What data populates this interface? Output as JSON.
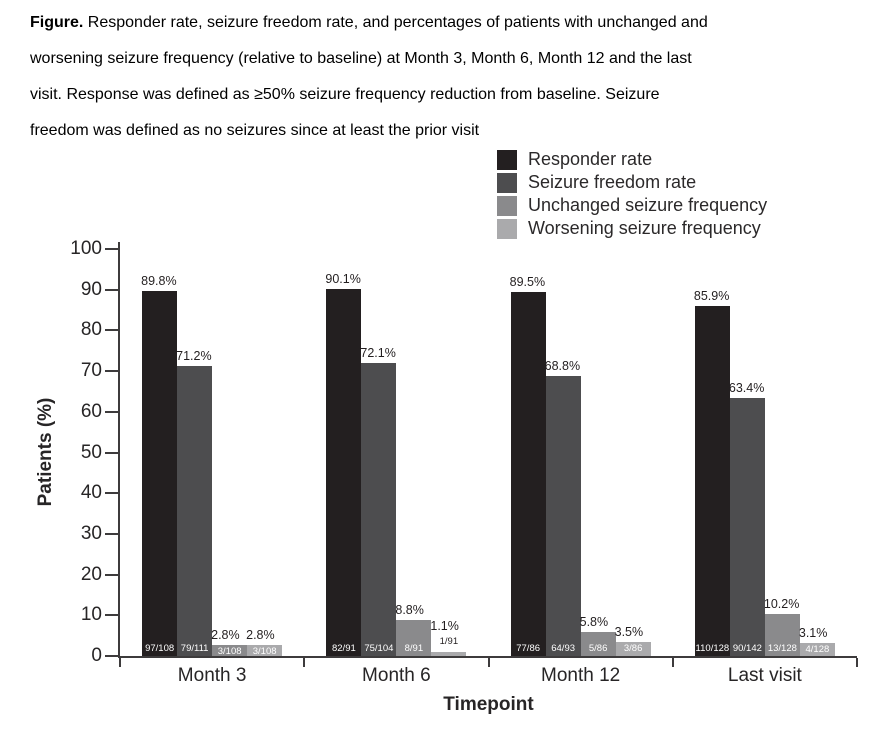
{
  "caption": {
    "prefix": "Figure.",
    "lines": [
      " Responder rate, seizure freedom rate, and percentages of patients with unchanged and",
      "worsening seizure frequency (relative to baseline) at Month 3, Month 6, Month 12 and the last",
      "visit. Response was defined as ≥50% seizure frequency reduction from baseline. Seizure",
      "freedom was defined as no seizures since at least the prior visit"
    ]
  },
  "chart_data": {
    "type": "bar",
    "title": "",
    "xlabel": "Timepoint",
    "ylabel": "Patients (%)",
    "ylim": [
      0,
      100
    ],
    "yticks": [
      0,
      10,
      20,
      30,
      40,
      50,
      60,
      70,
      80,
      90,
      100
    ],
    "grid": false,
    "legend_position": "top-right",
    "categories": [
      "Month 3",
      "Month 6",
      "Month 12",
      "Last visit"
    ],
    "series": [
      {
        "name": "Responder rate",
        "color": "#231f20",
        "values": [
          89.8,
          90.1,
          89.5,
          85.9
        ],
        "value_labels": [
          "89.8%",
          "90.1%",
          "89.5%",
          "85.9%"
        ],
        "fractions": [
          "97/108",
          "82/91",
          "77/86",
          "110/128"
        ]
      },
      {
        "name": "Seizure freedom rate",
        "color": "#4d4d4f",
        "values": [
          71.2,
          72.1,
          68.8,
          63.4
        ],
        "value_labels": [
          "71.2%",
          "72.1%",
          "68.8%",
          "63.4%"
        ],
        "fractions": [
          "79/111",
          "75/104",
          "64/93",
          "90/142"
        ]
      },
      {
        "name": "Unchanged seizure frequency",
        "color": "#8a8a8c",
        "values": [
          2.8,
          8.8,
          5.8,
          10.2
        ],
        "value_labels": [
          "2.8%",
          "8.8%",
          "5.8%",
          "10.2%"
        ],
        "fractions": [
          "3/108",
          "8/91",
          "5/86",
          "13/128"
        ]
      },
      {
        "name": "Worsening seizure frequency",
        "color": "#aaaaac",
        "values": [
          2.8,
          1.1,
          3.5,
          3.1
        ],
        "value_labels": [
          "2.8%",
          "1.1%",
          "3.5%",
          "3.1%"
        ],
        "fractions": [
          "3/108",
          "1/91",
          "3/86",
          "4/128"
        ]
      }
    ]
  }
}
